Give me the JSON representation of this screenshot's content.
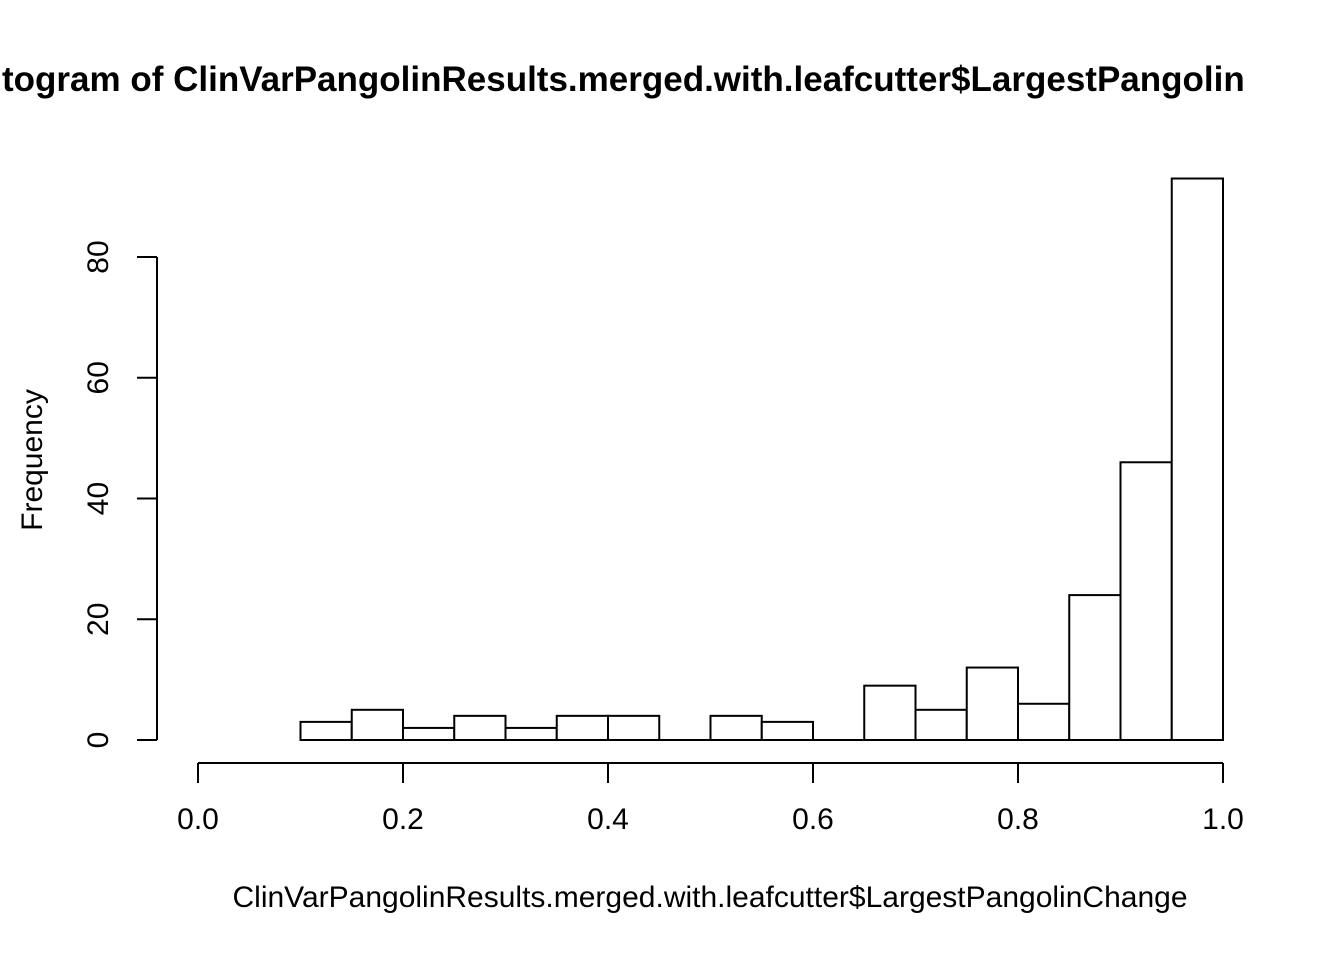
{
  "title_visible": "togram of ClinVarPangolinResults.merged.with.leafcutter$LargestPangolin",
  "chart_data": {
    "type": "bar",
    "subtype": "histogram",
    "title": "togram of ClinVarPangolinResults.merged.with.leafcutter$LargestPangolin",
    "xlabel": "ClinVarPangolinResults.merged.with.leafcutter$LargestPangolinChange",
    "ylabel": "Frequency",
    "bin_width": 0.05,
    "bin_starts": [
      0.1,
      0.15,
      0.2,
      0.25,
      0.3,
      0.35,
      0.4,
      0.45,
      0.5,
      0.55,
      0.6,
      0.65,
      0.7,
      0.75,
      0.8,
      0.85,
      0.9,
      0.95
    ],
    "counts": [
      3,
      5,
      2,
      4,
      2,
      4,
      4,
      0,
      4,
      3,
      0,
      9,
      5,
      12,
      6,
      24,
      46,
      93
    ],
    "x_ticks": [
      0.0,
      0.2,
      0.4,
      0.6,
      0.8,
      1.0
    ],
    "x_tick_labels": [
      "0.0",
      "0.2",
      "0.4",
      "0.6",
      "0.8",
      "1.0"
    ],
    "y_ticks": [
      0,
      20,
      40,
      60,
      80
    ],
    "y_tick_labels": [
      "0",
      "20",
      "40",
      "60",
      "80"
    ],
    "xlim": [
      0.0,
      1.0
    ],
    "ylim": [
      0,
      80
    ],
    "grid": "off",
    "legend": "none",
    "bar_fill": "#ffffff",
    "bar_stroke": "#000000",
    "axis_color": "#000000",
    "background": "#ffffff"
  }
}
